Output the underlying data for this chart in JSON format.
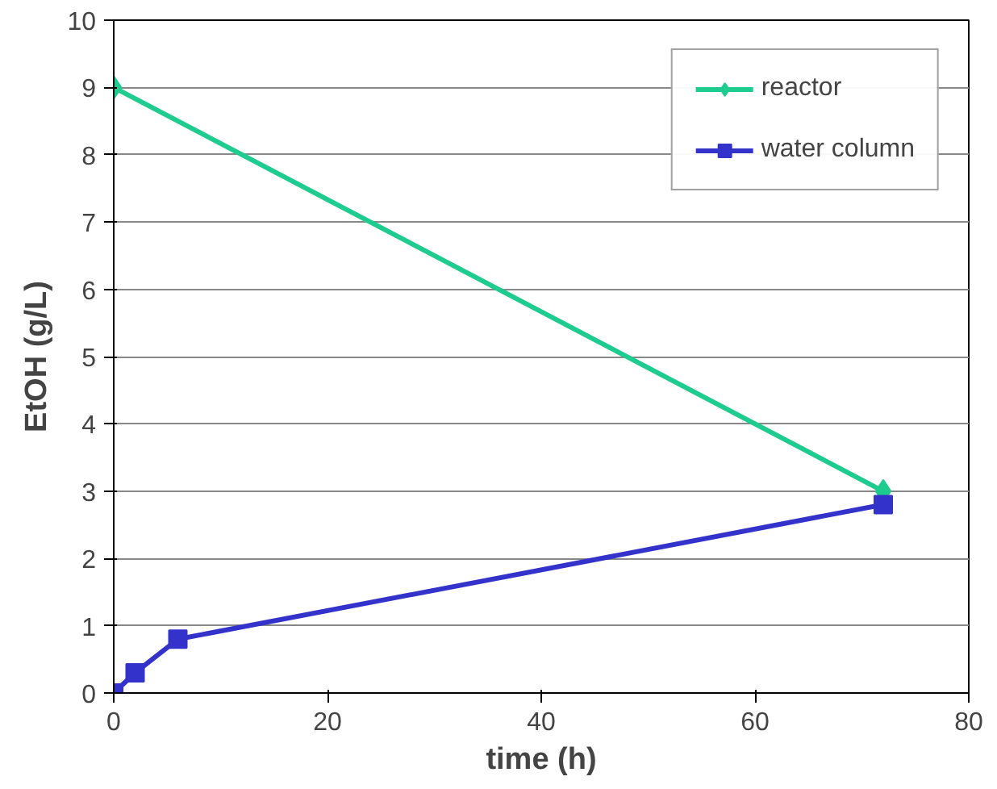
{
  "chart_data": {
    "type": "line",
    "xlabel": "time (h)",
    "ylabel": "EtOH (g/L)",
    "xlim": [
      0,
      80
    ],
    "xticks": [
      0,
      20,
      40,
      60,
      80
    ],
    "ylim": [
      0,
      10
    ],
    "yticks": [
      0,
      1,
      2,
      3,
      4,
      5,
      6,
      7,
      8,
      9,
      10
    ],
    "grid": "y",
    "legend": "top right",
    "line_style": "solid",
    "series": [
      {
        "name": "reactor",
        "color": "#1fcc8f",
        "marker": "diamond",
        "x": [
          0,
          72
        ],
        "values": [
          9,
          3
        ]
      },
      {
        "name": "water column",
        "color": "#3333cc",
        "marker": "square",
        "x": [
          0,
          2,
          6,
          72
        ],
        "values": [
          0,
          0.3,
          0.8,
          2.8
        ]
      }
    ]
  }
}
